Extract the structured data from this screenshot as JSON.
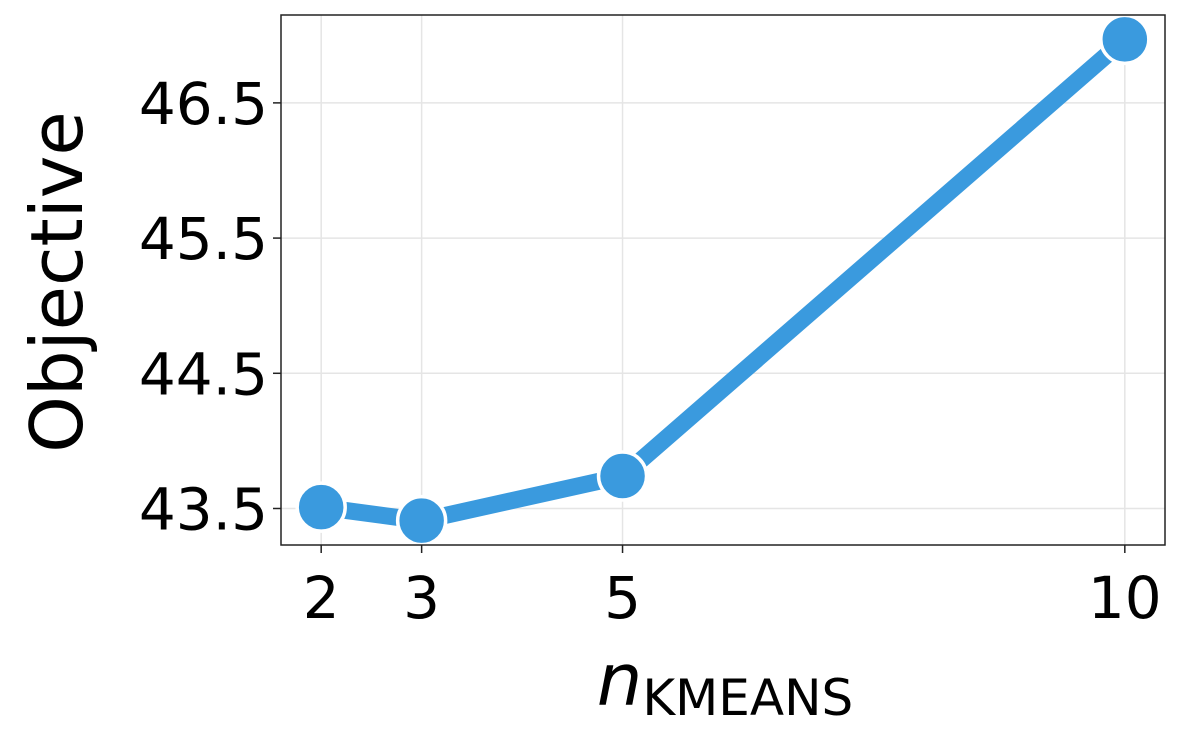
{
  "chart_data": {
    "type": "line",
    "title": "",
    "xlabel_main": "n",
    "xlabel_sub": "KMEANS",
    "ylabel": "Objective",
    "x": [
      2,
      3,
      5,
      10
    ],
    "series": [
      {
        "values": [
          43.51,
          43.41,
          43.74,
          46.97
        ],
        "color": "#3a9ade"
      }
    ],
    "xticks": [
      2,
      3,
      5,
      10
    ],
    "xtick_labels": [
      "2",
      "3",
      "5",
      "10"
    ],
    "yticks": [
      43.5,
      44.5,
      45.5,
      46.5
    ],
    "ytick_labels": [
      "43.5",
      "44.5",
      "45.5",
      "46.5"
    ],
    "xlim": [
      1.6,
      10.4
    ],
    "ylim": [
      43.23,
      47.15
    ],
    "grid": true,
    "marker": "circle"
  }
}
